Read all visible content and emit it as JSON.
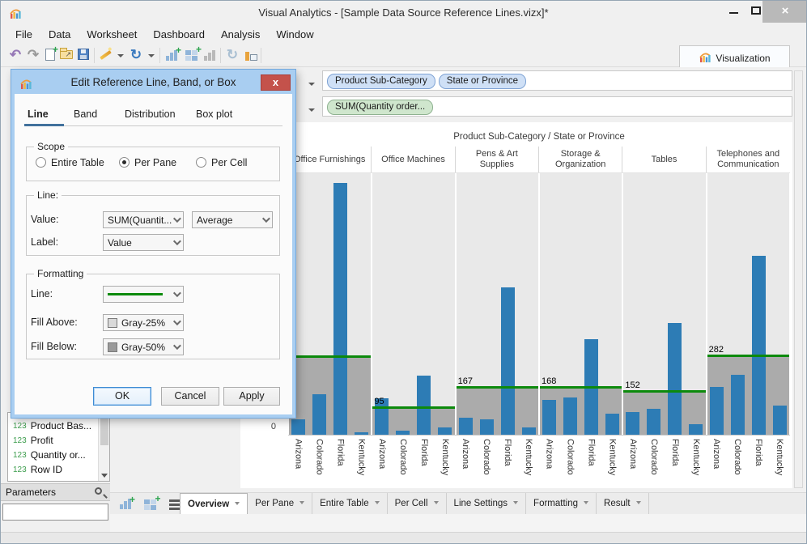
{
  "window": {
    "title": "Visual Analytics - [Sample Data Source Reference Lines.vizx]*",
    "controls": [
      "minimize-button",
      "maximize-button",
      "close-button"
    ],
    "close_glyph": "×"
  },
  "menu": {
    "items": [
      "File",
      "Data",
      "Worksheet",
      "Dashboard",
      "Analysis",
      "Window"
    ]
  },
  "toolbar": {
    "icons": [
      "undo-icon",
      "redo-icon",
      "new-workbook-icon",
      "open-icon",
      "save-icon",
      "magic-wand-icon",
      "refresh-data-icon",
      "add-worksheet-icon",
      "add-dashboard-icon",
      "show-me-icon",
      "update-icon",
      "swap-icon"
    ],
    "visualization_label": "Visualization"
  },
  "shelves": {
    "row1_pills": [
      "Product Sub-Category",
      "State or Province"
    ],
    "row2_pills": [
      "SUM(Quantity order..."
    ]
  },
  "sidebar": {
    "fields": [
      {
        "type": "123",
        "name": "Product Bas..."
      },
      {
        "type": "123",
        "name": "Profit"
      },
      {
        "type": "123",
        "name": "Quantity or..."
      },
      {
        "type": "123",
        "name": "Row ID"
      }
    ],
    "parameters_label": "Parameters"
  },
  "dialog": {
    "title": "Edit Reference Line, Band, or Box",
    "close_glyph": "x",
    "tabs": [
      "Line",
      "Band",
      "Distribution",
      "Box plot"
    ],
    "active_tab": "Line",
    "scope": {
      "legend": "Scope",
      "options": [
        "Entire Table",
        "Per Pane",
        "Per Cell"
      ],
      "selected": "Per Pane"
    },
    "line_section": {
      "legend": "Line:",
      "value_label": "Value:",
      "value_dropdown": "SUM(Quantit...",
      "aggregation_dropdown": "Average",
      "label_label": "Label:",
      "label_dropdown": "Value"
    },
    "formatting": {
      "legend": "Formatting",
      "line_label": "Line:",
      "fill_above_label": "Fill Above:",
      "fill_above_value": "Gray-25%",
      "fill_below_label": "Fill Below:",
      "fill_below_value": "Gray-50%"
    },
    "buttons": {
      "ok": "OK",
      "cancel": "Cancel",
      "apply": "Apply"
    }
  },
  "tabs_bottom": {
    "icons": [
      "add-worksheet-icon",
      "add-dashboard-icon",
      "sheet-list-icon"
    ],
    "items": [
      "Overview",
      "Per Pane",
      "Entire Table",
      "Per Cell",
      "Line Settings",
      "Formatting",
      "Result"
    ],
    "selected": "Overview"
  },
  "chart_data": {
    "type": "bar",
    "title": "Product Sub-Category / State or Province",
    "y_zero_label": "0",
    "ylim": [
      0,
      940
    ],
    "categories": [
      "Arizona",
      "Colorado",
      "Florida",
      "Kentucky"
    ],
    "legend": "none",
    "panes": [
      {
        "name": "Office Furnishings",
        "values": [
          55,
          145,
          900,
          10
        ],
        "ref_value": 277.5,
        "ref_label": ""
      },
      {
        "name": "Office Machines",
        "values": [
          130,
          15,
          210,
          25
        ],
        "ref_value": 95,
        "ref_label": "95"
      },
      {
        "name": "Pens & Art Supplies",
        "values": [
          61,
          56,
          525,
          26
        ],
        "ref_value": 167,
        "ref_label": "167"
      },
      {
        "name": "Storage & Organization",
        "values": [
          124,
          133,
          340,
          75
        ],
        "ref_value": 168,
        "ref_label": "168"
      },
      {
        "name": "Tables",
        "values": [
          80,
          92,
          399,
          37
        ],
        "ref_value": 152,
        "ref_label": "152"
      },
      {
        "name": "Telephones and Communication",
        "values": [
          170,
          215,
          640,
          103
        ],
        "ref_value": 282,
        "ref_label": "282"
      }
    ],
    "reference_line": {
      "scope": "per pane",
      "aggregation": "average",
      "color": "#0c8a0c"
    },
    "colors": {
      "bar": "#2d7cb5",
      "ref_line": "#0c8a0c",
      "fill_below": "#ababab",
      "fill_above": "#e9e9e9"
    }
  }
}
